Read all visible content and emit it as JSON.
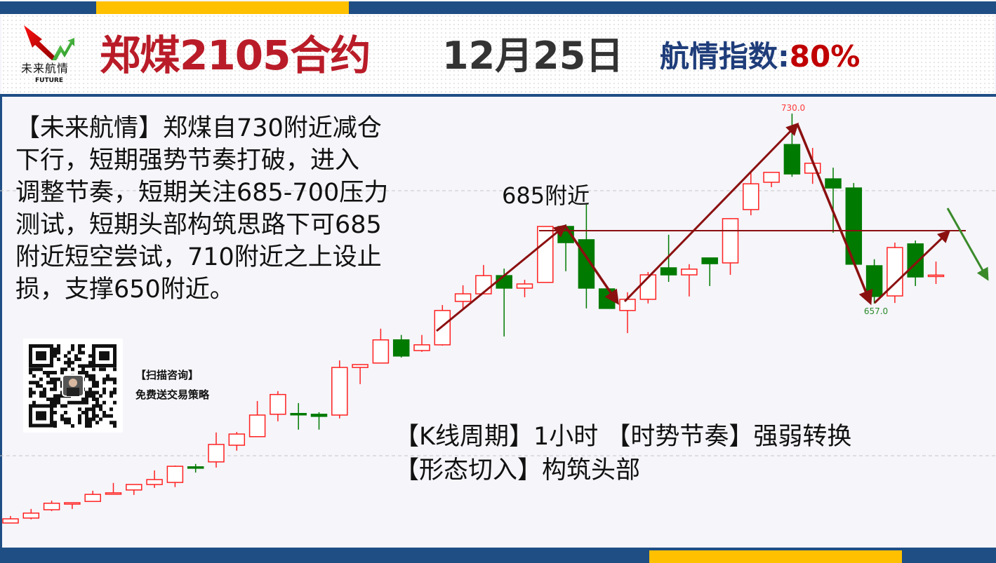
{
  "header": {
    "logo_text": "未来航情",
    "logo_sub": "FUTURE",
    "title": "郑煤2105合约",
    "date": "12月25日",
    "index_label": "航情指数:",
    "index_value": "80%"
  },
  "analysis_lines": [
    "【未来航情】郑煤自730附近减仓",
    "下行，短期强势节奏打破，进入",
    "调整节奏，短期关注685-700压力",
    "测试，短期头部构筑思路下可685",
    "附近短空尝试，710附近之上设止",
    "损，支撑650附近。"
  ],
  "qr": {
    "line1": "【扫描咨询】",
    "line2": "免费送交易策略"
  },
  "footer_info": {
    "line1": "【K线周期】1小时 【时势节奏】强弱转换",
    "line2": "【形态切入】构筑头部"
  },
  "annotation_label": "685附近",
  "colors": {
    "up": "#ff2020",
    "down": "#007a00",
    "brand_blue": "#1f4e85",
    "accent_yellow": "#ffc000",
    "title_red": "#b91c28",
    "arrow": "#8b1010"
  },
  "chart_data": {
    "type": "candlestick",
    "period": "1小时",
    "high_label": "730.0",
    "low_label": "657.0",
    "resistance_level": 685,
    "candles": [
      [
        572.6,
        575.3,
        572.6,
        574.2
      ],
      [
        574.5,
        578.0,
        574.0,
        576.4
      ],
      [
        577.7,
        581.2,
        577.2,
        580.2
      ],
      [
        579.9,
        580.4,
        578.0,
        580.4
      ],
      [
        580.9,
        585.0,
        580.9,
        583.6
      ],
      [
        583.7,
        588.0,
        583.7,
        584.2
      ],
      [
        585.3,
        587.4,
        583.4,
        587.4
      ],
      [
        587.4,
        592.8,
        586.1,
        589.3
      ],
      [
        588.2,
        594.7,
        586.4,
        594.4
      ],
      [
        594.2,
        595.3,
        592.0,
        594.0
      ],
      [
        596.1,
        607.4,
        593.9,
        602.8
      ],
      [
        602.5,
        607.6,
        600.4,
        606.8
      ],
      [
        605.8,
        619.5,
        605.8,
        614.1
      ],
      [
        614.4,
        623.3,
        611.7,
        622.0
      ],
      [
        614.7,
        618.7,
        608.5,
        614.4
      ],
      [
        614.4,
        615.2,
        608.5,
        613.6
      ],
      [
        614.1,
        635.1,
        612.8,
        632.4
      ],
      [
        632.4,
        633.5,
        626.0,
        633.5
      ],
      [
        634.1,
        647.3,
        634.1,
        643.0
      ],
      [
        643.0,
        644.9,
        636.2,
        636.8
      ],
      [
        638.9,
        644.9,
        638.4,
        641.1
      ],
      [
        641.1,
        656.4,
        640.8,
        654.3
      ],
      [
        657.8,
        664.0,
        655.1,
        660.7
      ],
      [
        660.7,
        671.8,
        660.7,
        667.7
      ],
      [
        667.7,
        670.4,
        644.3,
        662.9
      ],
      [
        662.9,
        666.1,
        659.4,
        664.5
      ],
      [
        665.1,
        686.6,
        665.1,
        686.6
      ],
      [
        686.6,
        687.4,
        669.4,
        680.4
      ],
      [
        681.5,
        695.0,
        655.1,
        662.9
      ],
      [
        662.6,
        663.4,
        655.1,
        655.1
      ],
      [
        654.3,
        661.3,
        645.6,
        658.6
      ],
      [
        658.6,
        669.1,
        657.0,
        668.0
      ],
      [
        670.7,
        683.4,
        665.3,
        668.0
      ],
      [
        668.0,
        672.1,
        659.7,
        670.2
      ],
      [
        674.5,
        674.5,
        663.7,
        672.3
      ],
      [
        672.6,
        689.8,
        668.0,
        689.6
      ],
      [
        693.1,
        707.4,
        690.9,
        703.0
      ],
      [
        703.6,
        707.4,
        701.7,
        707.4
      ],
      [
        718.1,
        730.0,
        705.7,
        706.8
      ],
      [
        707.1,
        716.8,
        703.0,
        710.9
      ],
      [
        704.9,
        709.2,
        684.2,
        701.4
      ],
      [
        701.4,
        703.3,
        672.1,
        672.1
      ],
      [
        671.5,
        674.0,
        657.0,
        659.7
      ],
      [
        659.9,
        680.4,
        657.2,
        678.5
      ],
      [
        679.9,
        681.2,
        663.7,
        667.2
      ],
      [
        667.7,
        673.1,
        664.5,
        667.9
      ]
    ]
  }
}
